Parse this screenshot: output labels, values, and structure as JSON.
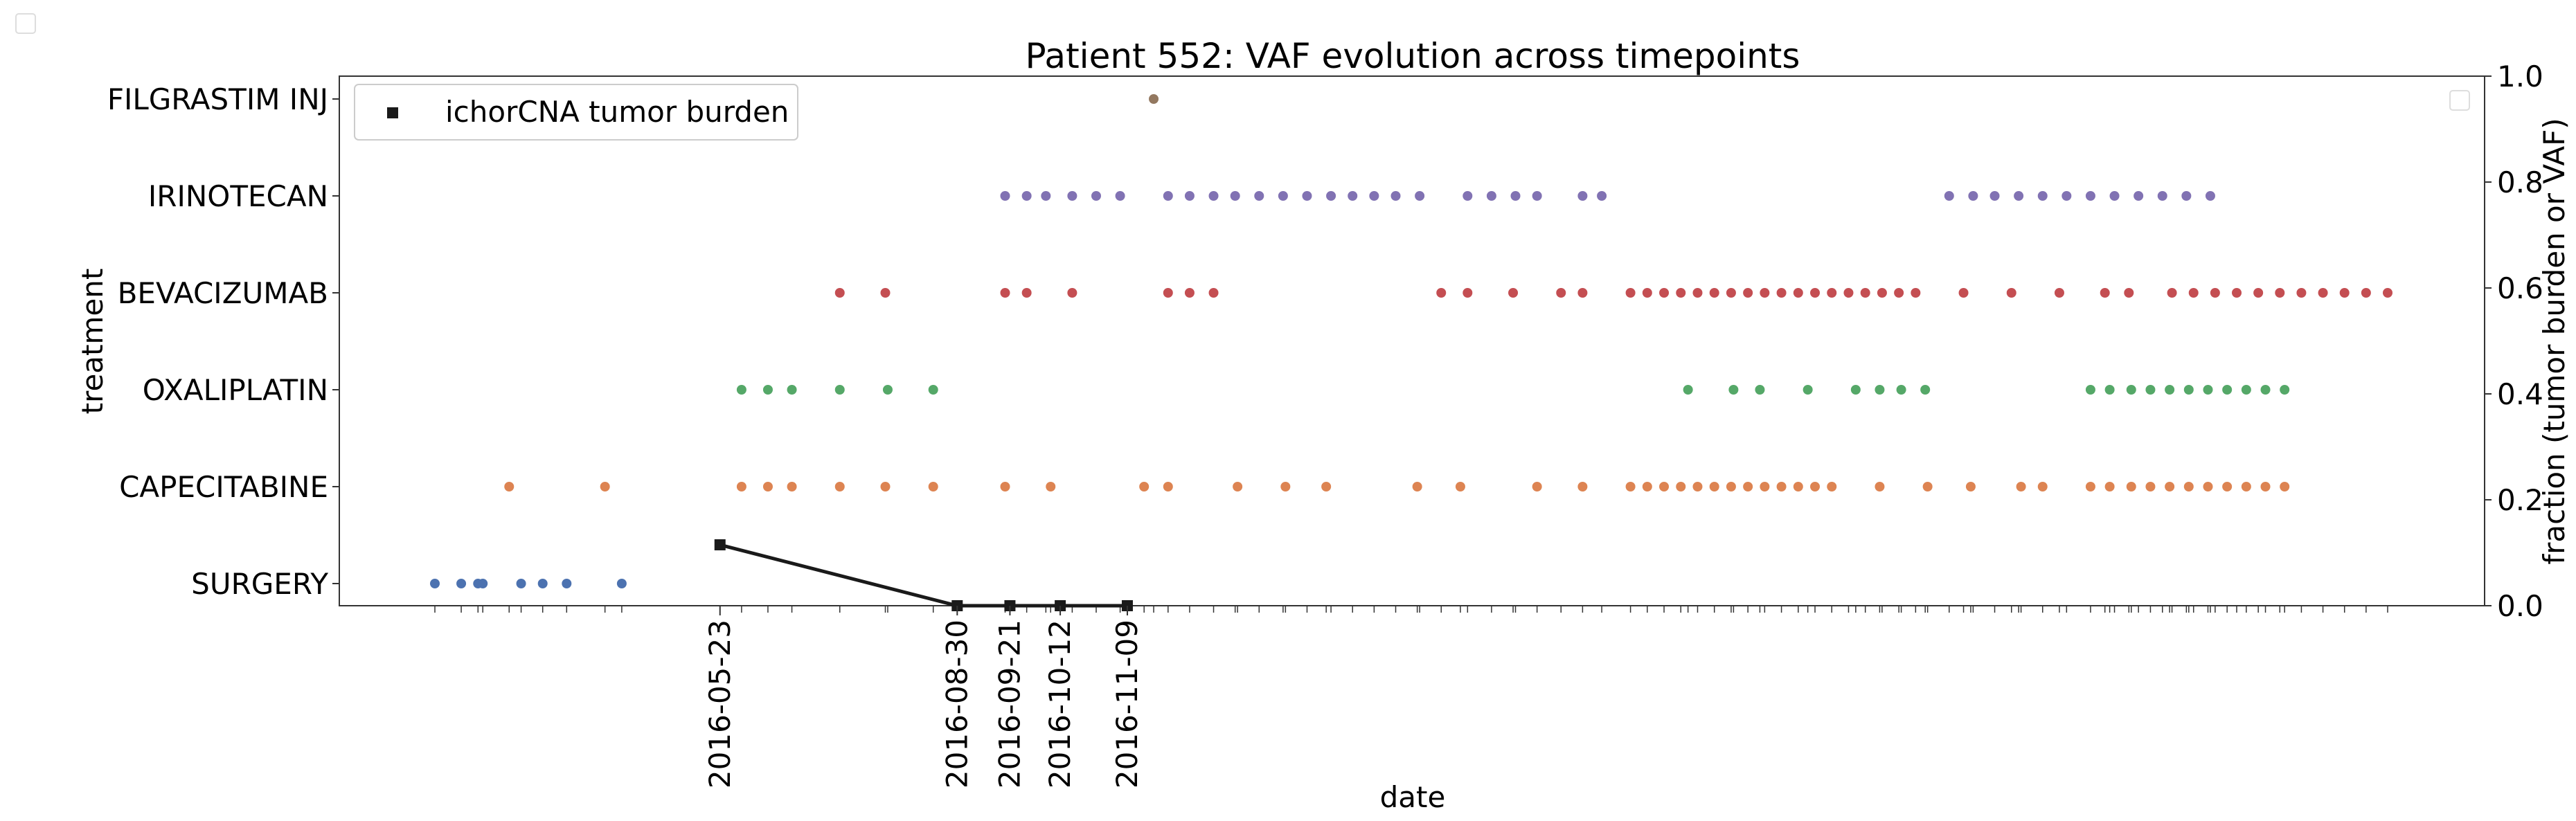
{
  "chart_data": {
    "type": "scatter",
    "title": "Patient 552: VAF evolution across timepoints",
    "xlabel": "date",
    "ylabel_left": "treatment",
    "ylabel_right": "fraction (tumor burden or VAF)",
    "categories": [
      "SURGERY",
      "CAPECITABINE",
      "OXALIPLATIN",
      "BEVACIZUMAB",
      "IRINOTECAN",
      "FILGRASTIM INJ"
    ],
    "x_tick_labels": [
      "2016-05-23",
      "2016-08-30",
      "2016-09-21",
      "2016-10-12",
      "2016-11-09"
    ],
    "right_ylim": [
      0,
      1
    ],
    "right_yticks": [
      "0.0",
      "0.2",
      "0.4",
      "0.6",
      "0.8",
      "1.0"
    ],
    "legend": {
      "label": "ichorCNA tumor burden",
      "placement": "upper-left",
      "marker": "square"
    },
    "grid": false,
    "colors": {
      "SURGERY": "#4c72b0",
      "CAPECITABINE": "#dd8452",
      "OXALIPLATIN": "#55a868",
      "BEVACIZUMAB": "#c44e52",
      "IRINOTECAN": "#8172b3",
      "FILGRASTIM INJ": "#937860",
      "burden": "#1a1a1a"
    },
    "treatments": [
      {
        "name": "SURGERY",
        "dates": [
          "2016-01-25",
          "2016-02-05",
          "2016-02-12",
          "2016-02-14",
          "2016-03-01",
          "2016-03-10",
          "2016-03-20",
          "2016-04-12"
        ]
      },
      {
        "name": "CAPECITABINE",
        "dates": [
          "2016-02-25",
          "2016-04-05",
          "2016-06-01",
          "2016-06-12",
          "2016-06-22",
          "2016-07-12",
          "2016-07-31",
          "2016-08-20",
          "2016-09-19",
          "2016-10-08",
          "2016-11-16",
          "2016-11-26",
          "2016-12-25",
          "2017-01-14",
          "2017-01-31",
          "2017-03-10",
          "2017-03-28",
          "2017-04-29",
          "2017-05-18",
          "2017-06-07",
          "2017-06-14",
          "2017-06-21",
          "2017-06-28",
          "2017-07-05",
          "2017-07-12",
          "2017-07-19",
          "2017-07-26",
          "2017-08-02",
          "2017-08-09",
          "2017-08-16",
          "2017-08-23",
          "2017-08-30",
          "2017-09-19",
          "2017-10-09",
          "2017-10-27",
          "2017-11-17",
          "2017-11-26",
          "2017-12-16",
          "2017-12-24",
          "2018-01-02",
          "2018-01-10",
          "2018-01-18",
          "2018-01-26",
          "2018-02-03",
          "2018-02-11",
          "2018-02-19",
          "2018-02-27",
          "2018-03-07"
        ]
      },
      {
        "name": "OXALIPLATIN",
        "dates": [
          "2016-06-01",
          "2016-06-12",
          "2016-06-22",
          "2016-07-12",
          "2016-08-01",
          "2016-08-20",
          "2017-07-01",
          "2017-07-20",
          "2017-07-31",
          "2017-08-20",
          "2017-09-09",
          "2017-09-19",
          "2017-09-28",
          "2017-10-08",
          "2017-12-16",
          "2017-12-24",
          "2018-01-02",
          "2018-01-10",
          "2018-01-18",
          "2018-01-26",
          "2018-02-03",
          "2018-02-11",
          "2018-02-19",
          "2018-02-27",
          "2018-03-07"
        ]
      },
      {
        "name": "BEVACIZUMAB",
        "dates": [
          "2016-07-12",
          "2016-07-31",
          "2016-09-19",
          "2016-09-28",
          "2016-10-17",
          "2016-11-26",
          "2016-12-05",
          "2016-12-15",
          "2017-03-20",
          "2017-03-31",
          "2017-04-19",
          "2017-05-09",
          "2017-05-18",
          "2017-06-07",
          "2017-06-14",
          "2017-06-21",
          "2017-06-28",
          "2017-07-05",
          "2017-07-12",
          "2017-07-19",
          "2017-07-26",
          "2017-08-02",
          "2017-08-09",
          "2017-08-16",
          "2017-08-23",
          "2017-08-30",
          "2017-09-06",
          "2017-09-13",
          "2017-09-20",
          "2017-09-27",
          "2017-10-04",
          "2017-10-24",
          "2017-11-13",
          "2017-12-03",
          "2017-12-22",
          "2018-01-01",
          "2018-01-19",
          "2018-01-28",
          "2018-02-06",
          "2018-02-15",
          "2018-02-24",
          "2018-03-05",
          "2018-03-14",
          "2018-03-23",
          "2018-04-01",
          "2018-04-10",
          "2018-04-19"
        ]
      },
      {
        "name": "IRINOTECAN",
        "dates": [
          "2016-09-19",
          "2016-09-28",
          "2016-10-06",
          "2016-10-17",
          "2016-10-27",
          "2016-11-06",
          "2016-11-26",
          "2016-12-05",
          "2016-12-15",
          "2016-12-24",
          "2017-01-03",
          "2017-01-13",
          "2017-01-23",
          "2017-02-02",
          "2017-02-11",
          "2017-02-20",
          "2017-03-01",
          "2017-03-11",
          "2017-03-31",
          "2017-04-10",
          "2017-04-20",
          "2017-04-29",
          "2017-05-18",
          "2017-05-26",
          "2017-10-18",
          "2017-10-28",
          "2017-11-06",
          "2017-11-16",
          "2017-11-26",
          "2017-12-06",
          "2017-12-16",
          "2017-12-26",
          "2018-01-05",
          "2018-01-15",
          "2018-01-25",
          "2018-02-04"
        ]
      },
      {
        "name": "FILGRASTIM INJ",
        "dates": [
          "2016-11-20"
        ]
      }
    ],
    "tumor_burden": {
      "x": [
        "2016-05-23",
        "2016-08-30",
        "2016-09-21",
        "2016-10-12",
        "2016-11-09"
      ],
      "y": [
        0.115,
        0.0,
        0.0,
        0.0,
        0.0
      ]
    }
  }
}
